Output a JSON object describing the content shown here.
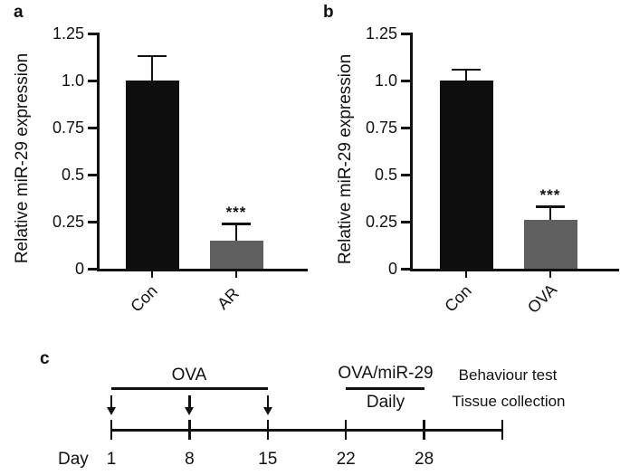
{
  "figure": {
    "background": "#ffffff",
    "ink": "#111111"
  },
  "panels": {
    "a": {
      "label": "a"
    },
    "b": {
      "label": "b"
    },
    "c": {
      "label": "c"
    }
  },
  "chart_data": [
    {
      "type": "bar",
      "panel": "a",
      "title": "",
      "xlabel": "",
      "ylabel": "Relative miR-29 expression",
      "categories": [
        "Con",
        "AR"
      ],
      "values": [
        1.0,
        0.15
      ],
      "errors_upper": [
        0.13,
        0.09
      ],
      "bar_colors": [
        "#0e0e0e",
        "#5f5f5f"
      ],
      "ytick_values": [
        0,
        0.25,
        0.5,
        0.75,
        1.0,
        1.25
      ],
      "ytick_labels": [
        "0",
        "0.25",
        "0.5",
        "0.75",
        "1.0",
        "1.25"
      ],
      "ylim": [
        0,
        1.25
      ],
      "grid": false,
      "legend": "none",
      "significance": {
        "index": 1,
        "label": "***"
      }
    },
    {
      "type": "bar",
      "panel": "b",
      "title": "",
      "xlabel": "",
      "ylabel": "Relative miR-29 expression",
      "categories": [
        "Con",
        "OVA"
      ],
      "values": [
        1.0,
        0.26
      ],
      "errors_upper": [
        0.06,
        0.07
      ],
      "bar_colors": [
        "#0e0e0e",
        "#5f5f5f"
      ],
      "ytick_values": [
        0,
        0.25,
        0.5,
        0.75,
        1.0,
        1.25
      ],
      "ytick_labels": [
        "0",
        "0.25",
        "0.5",
        "0.75",
        "1.0",
        "1.25"
      ],
      "ylim": [
        0,
        1.25
      ],
      "grid": false,
      "legend": "none",
      "significance": {
        "index": 1,
        "label": "***"
      }
    },
    {
      "type": "timeline",
      "panel": "c",
      "axis_label": "Day",
      "tick_labels": [
        "1",
        "8",
        "15",
        "22",
        "28"
      ],
      "has_unlabeled_end_tick": true,
      "ova_sensitization": {
        "label": "OVA",
        "from_day": "1",
        "to_day": "15",
        "injection_days": [
          "1",
          "8",
          "15"
        ]
      },
      "treatment": {
        "label": "OVA/miR-29",
        "sublabel": "Daily",
        "from_day": "22",
        "to_day": "28"
      },
      "endpoint_notes": [
        "Behaviour test",
        "Tissue collection"
      ]
    }
  ]
}
